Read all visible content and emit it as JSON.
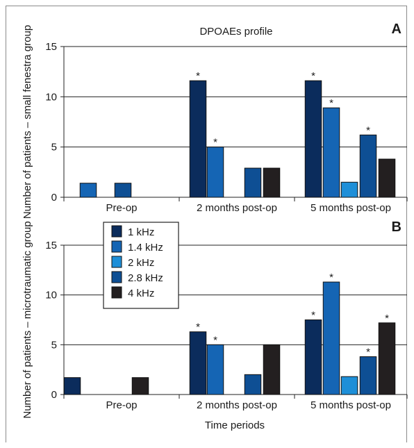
{
  "figure": {
    "title": "DPOAEs profile",
    "xlabel": "Time periods"
  },
  "colors": {
    "1 kHz": "#0b2c5c",
    "1.4 kHz": "#1565b4",
    "2 kHz": "#1e8fd8",
    "2.8 kHz": "#0e4f94",
    "4 kHz": "#231f20"
  },
  "legend": {
    "placement": "upper-left of panel B",
    "items": [
      "1 kHz",
      "1.4 kHz",
      "2 kHz",
      "2.8 kHz",
      "4 kHz"
    ]
  },
  "chart_data": [
    {
      "type": "bar",
      "panel_label": "A",
      "title": "DPOAEs profile",
      "ylabel": "Number of patients – small fenestra group",
      "xlabel": "",
      "ylim": [
        0,
        15
      ],
      "yticks": [
        0,
        5,
        10,
        15
      ],
      "grid": "horizontal",
      "categories": [
        "Pre-op",
        "2 months post-op",
        "5 months post-op"
      ],
      "series": [
        {
          "name": "1 kHz",
          "values": [
            0,
            11.6,
            11.6
          ],
          "stars": [
            false,
            true,
            true
          ]
        },
        {
          "name": "1.4 kHz",
          "values": [
            1.4,
            5,
            8.9
          ],
          "stars": [
            false,
            true,
            true
          ]
        },
        {
          "name": "2 kHz",
          "values": [
            0,
            0,
            1.5
          ],
          "stars": [
            false,
            false,
            false
          ]
        },
        {
          "name": "2.8 kHz",
          "values": [
            1.4,
            2.9,
            6.2
          ],
          "stars": [
            false,
            false,
            true
          ]
        },
        {
          "name": "4 kHz",
          "values": [
            0,
            2.9,
            3.8
          ],
          "stars": [
            false,
            false,
            false
          ]
        }
      ]
    },
    {
      "type": "bar",
      "panel_label": "B",
      "title": "",
      "ylabel": "Number of patients – microtraumatic group",
      "xlabel": "Time periods",
      "ylim": [
        0,
        15
      ],
      "yticks": [
        0,
        5,
        10,
        15
      ],
      "grid": "horizontal",
      "categories": [
        "Pre-op",
        "2 months post-op",
        "5 months post-op"
      ],
      "series": [
        {
          "name": "1 kHz",
          "values": [
            1.7,
            6.3,
            7.5
          ],
          "stars": [
            false,
            true,
            true
          ]
        },
        {
          "name": "1.4 kHz",
          "values": [
            0,
            5,
            11.3
          ],
          "stars": [
            false,
            true,
            true
          ]
        },
        {
          "name": "2 kHz",
          "values": [
            0,
            0,
            1.8
          ],
          "stars": [
            false,
            false,
            false
          ]
        },
        {
          "name": "2.8 kHz",
          "values": [
            0,
            2,
            3.8
          ],
          "stars": [
            false,
            false,
            true
          ]
        },
        {
          "name": "4 kHz",
          "values": [
            1.7,
            5,
            7.2
          ],
          "stars": [
            false,
            false,
            true
          ]
        }
      ]
    }
  ]
}
